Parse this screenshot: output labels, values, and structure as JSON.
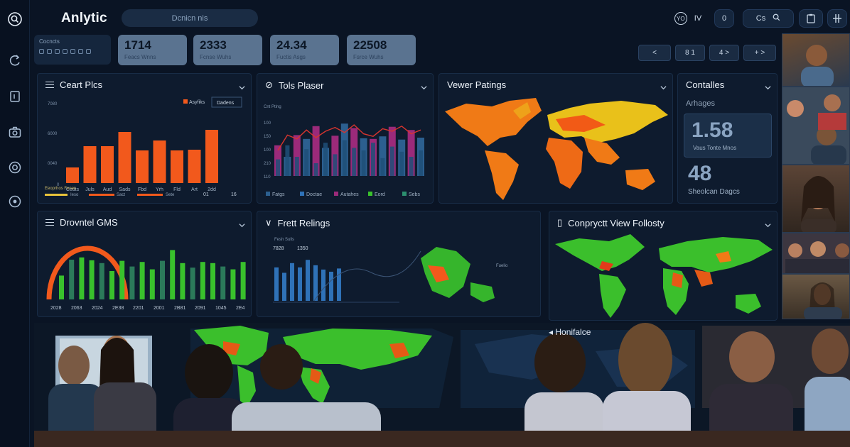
{
  "app": {
    "title": "Anlytic",
    "search_label": "Dcnicn nis"
  },
  "rail": {
    "icons": [
      "search-icon",
      "refresh-icon",
      "document-icon",
      "camera-icon",
      "target-icon",
      "record-icon"
    ]
  },
  "header": {
    "user_badge": "YO",
    "user_letter": "IV",
    "count": "0",
    "cam_label": "Cs",
    "search_icon": "search-icon",
    "doc_icon": "clipboard-icon",
    "grid_icon": "grid-icon"
  },
  "toolbar": {
    "label": "Cocncts"
  },
  "kpis": [
    {
      "value": "1714",
      "label": "Feacs Wnns"
    },
    {
      "value": "2333",
      "label": "Fcnse Wuhs"
    },
    {
      "value": "24.34",
      "label": "Fuctis Asgs"
    },
    {
      "value": "22508",
      "label": "Fsrce Wuhs"
    }
  ],
  "nav_buttons": [
    {
      "icon": "phone-icon",
      "text": "<"
    },
    {
      "icon": "page-icon",
      "text": "8  1"
    },
    {
      "icon": "arrow-icon",
      "text": "4  >"
    },
    {
      "icon": "plus-icon",
      "text": "+  >"
    }
  ],
  "panels": {
    "chart_plies": {
      "title": "Ceart Plcs",
      "legend_a": "Asyfiks",
      "legend_b": "Dadens",
      "ylabels": [
        "7080",
        "6000",
        "0040",
        "0"
      ],
      "footer_label": "Eeoprhos Fenes",
      "footer_items": [
        "Ieso",
        "Sact",
        "Sete"
      ],
      "footer_nums": [
        "01",
        "16"
      ]
    },
    "tols_plaser": {
      "title": "Tols Plaser",
      "sub": "Cnt Ptlng",
      "ylabels": [
        "100",
        "150",
        "100",
        "210",
        "110"
      ],
      "legend": [
        "Fatgs",
        "Doctae",
        "Autahes",
        "Eord",
        "Sebs"
      ]
    },
    "viewer_ratings": {
      "title": "Vewer Patings"
    },
    "contalles": {
      "title": "Contalles",
      "sub": "Arhages",
      "big1": "1.58",
      "big1_label": "Vaus Tonte Mnos",
      "big2": "48",
      "big2_label": "Sheolcan Dagcs"
    },
    "drovntel": {
      "title": "Drovntel GMS",
      "xlabels": [
        "2028",
        "2063",
        "2024",
        "2E38",
        "2201",
        "2001",
        "2B81",
        "2091",
        "1045",
        "2E4"
      ]
    },
    "frett_ratings": {
      "title": "Frett Relings",
      "sub": "Fesh Sulls",
      "tags": [
        "7828",
        "1350"
      ],
      "map_label": "Fuelio"
    },
    "conpry": {
      "title": "Conpryctt View Follosty"
    },
    "homeface": {
      "title": "Honifalce"
    }
  },
  "colors": {
    "bg": "#0a1424",
    "panel": "#0e1b2e",
    "orange": "#f2591c",
    "green": "#39c12c",
    "purple": "#9b2a7a",
    "blue": "#2c5f8f",
    "kpi": "#5a7390"
  },
  "chart_data": [
    {
      "type": "bar",
      "title": "Ceart Plcs",
      "categories": [
        "Cedts",
        "Juls",
        "Aud",
        "Sads",
        "Fbd",
        "Yrh",
        "Fld",
        "Art",
        "2dd"
      ],
      "values": [
        22,
        52,
        52,
        72,
        46,
        60,
        46,
        47,
        75
      ],
      "ylim": [
        0,
        100
      ]
    },
    {
      "type": "bar",
      "title": "Tols Plaser",
      "series": [
        {
          "values": [
            48,
            30,
            64,
            58,
            78,
            44,
            63,
            82,
            75,
            59,
            58,
            62,
            77,
            57,
            72,
            60
          ]
        },
        {
          "values": [
            26,
            48,
            30,
            42,
            20,
            52,
            34,
            56,
            44,
            40,
            52,
            28,
            46,
            38,
            30,
            40
          ]
        }
      ],
      "line": [
        40,
        64,
        58,
        72,
        60,
        70,
        76,
        68,
        80,
        66,
        62,
        74,
        70,
        78,
        66,
        72
      ]
    },
    {
      "type": "bar",
      "title": "Drovntel GMS",
      "values": [
        42,
        70,
        74,
        69,
        64,
        50,
        68,
        58,
        66,
        53,
        68,
        87,
        64,
        56,
        66,
        64,
        58,
        53,
        66
      ],
      "ylim": [
        0,
        100
      ]
    },
    {
      "type": "bar",
      "title": "Frett Relings",
      "values": [
        62,
        52,
        70,
        62,
        76,
        66,
        58,
        54,
        60
      ],
      "ylim": [
        0,
        100
      ]
    }
  ]
}
